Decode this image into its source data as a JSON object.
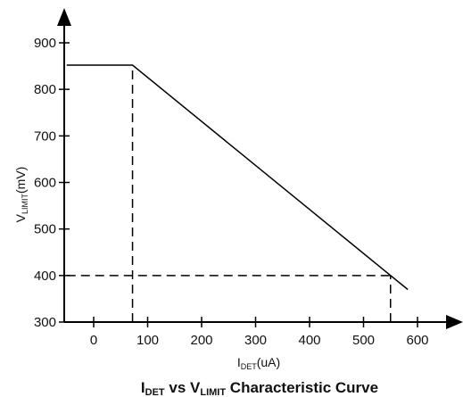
{
  "chart_data": {
    "type": "line",
    "title": {
      "main": "I",
      "sub1": "DET",
      "mid": " vs V",
      "sub2": "LIMIT",
      "end": " Characteristic Curve"
    },
    "xlabel": {
      "main": "I",
      "sub": "DET",
      "unit": "(uA)"
    },
    "ylabel": {
      "main": "V",
      "sub": "LIMIT",
      "unit": "(mV)"
    },
    "xlim": [
      -50,
      620
    ],
    "ylim": [
      300,
      960
    ],
    "x_ticks": [
      0,
      100,
      200,
      300,
      400,
      500,
      600
    ],
    "y_ticks": [
      300,
      400,
      500,
      600,
      700,
      800,
      900
    ],
    "x_tick_labels": [
      "0",
      "100",
      "200",
      "300",
      "400",
      "500",
      "600"
    ],
    "y_tick_labels": [
      "300",
      "400",
      "500",
      "600",
      "700",
      "800",
      "900"
    ],
    "series": [
      {
        "x": [
          -50,
          72,
          550,
          582
        ],
        "y": [
          852,
          852,
          400,
          370
        ]
      }
    ],
    "reference_lines": [
      {
        "x": [
          72,
          72
        ],
        "y": [
          300,
          852
        ]
      },
      {
        "x": [
          -50,
          550
        ],
        "y": [
          400,
          400
        ]
      },
      {
        "x": [
          550,
          550
        ],
        "y": [
          300,
          400
        ]
      }
    ],
    "grid": false,
    "colors": {
      "line": "#000000",
      "axis": "#000000",
      "text": "#111111"
    }
  }
}
